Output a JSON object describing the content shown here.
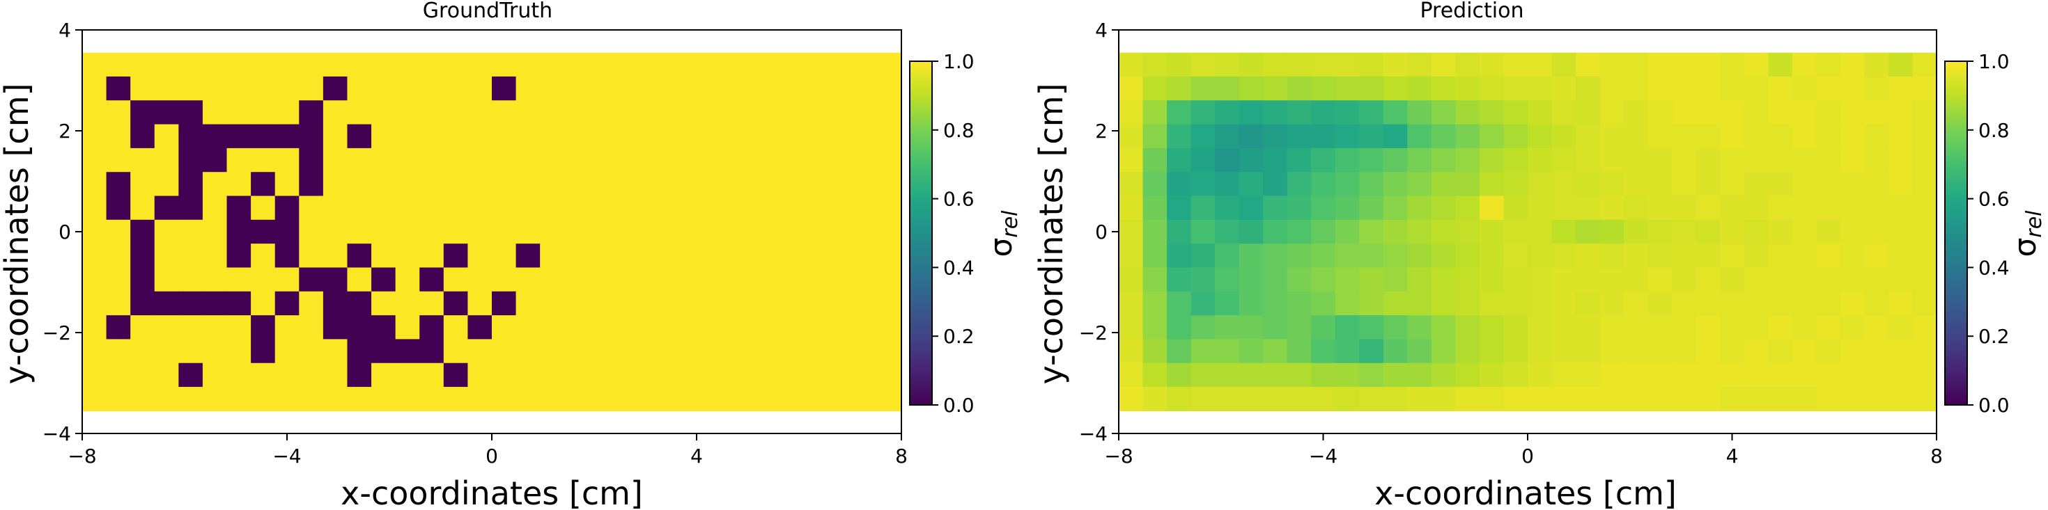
{
  "chart_data": [
    {
      "type": "heatmap",
      "title": "GroundTruth",
      "xlabel": "x-coordinates [cm]",
      "ylabel": "y-coordinates [cm]",
      "xlim": [
        -8,
        8
      ],
      "ylim": [
        -4,
        4
      ],
      "extent": [
        -8,
        8,
        -3.55,
        3.55
      ],
      "xticks": [
        "−8",
        "−4",
        "0",
        "4",
        "8"
      ],
      "yticks": [
        "−4",
        "−2",
        "0",
        "2",
        "4"
      ],
      "grid": false,
      "colormap": "viridis",
      "colorbar": {
        "label": "σrel",
        "ticks": [
          "0.0",
          "0.2",
          "0.4",
          "0.6",
          "0.8",
          "1.0"
        ],
        "range": [
          0,
          1
        ]
      },
      "grid_size": [
        15,
        34
      ],
      "matrix": [
        "1111111111111111111111111111111111",
        "1011111111011111101111111111111111",
        "1100011110111111111111111111111111",
        "1101000000101111111111111111111111",
        "1111001110111111111111111111111111",
        "1011011010111111111111111111111111",
        "1010010101111111111111111111111111",
        "1101110001111111111111111111111111",
        "1101110101101110110111111111111111",
        "1101111110010101111111111111111111",
        "1100000101001110101111111111111111",
        "1011111011000101011111111111111111",
        "1111111011100001111111111111111111",
        "1111011111101110111111111111111111",
        "1111111111111111111111111111111111"
      ]
    },
    {
      "type": "heatmap",
      "title": "Prediction",
      "xlabel": "x-coordinates [cm]",
      "ylabel": "y-coordinates [cm]",
      "xlim": [
        -8,
        8
      ],
      "ylim": [
        -4,
        4
      ],
      "extent": [
        -8,
        8,
        -3.55,
        3.55
      ],
      "xticks": [
        "−8",
        "−4",
        "0",
        "4",
        "8"
      ],
      "yticks": [
        "−4",
        "−2",
        "0",
        "2",
        "4"
      ],
      "grid": false,
      "colormap": "viridis",
      "colorbar": {
        "label": "σrel",
        "ticks": [
          "0.0",
          "0.2",
          "0.4",
          "0.6",
          "0.8",
          "1.0"
        ],
        "range": [
          0,
          1
        ]
      },
      "grid_size": [
        15,
        34
      ],
      "values": [
        [
          0.95,
          0.93,
          0.92,
          0.94,
          0.93,
          0.92,
          0.93,
          0.93,
          0.94,
          0.94,
          0.93,
          0.95,
          0.94,
          0.96,
          0.94,
          0.95,
          0.96,
          0.96,
          0.93,
          0.97,
          0.96,
          0.96,
          0.97,
          0.97,
          0.97,
          0.96,
          0.97,
          0.92,
          0.97,
          0.96,
          0.97,
          0.95,
          0.92,
          0.96
        ],
        [
          0.97,
          0.9,
          0.88,
          0.85,
          0.85,
          0.87,
          0.88,
          0.86,
          0.87,
          0.88,
          0.88,
          0.9,
          0.89,
          0.91,
          0.92,
          0.93,
          0.94,
          0.94,
          0.95,
          0.93,
          0.96,
          0.96,
          0.97,
          0.97,
          0.97,
          0.96,
          0.96,
          0.97,
          0.96,
          0.97,
          0.97,
          0.96,
          0.97,
          0.97
        ],
        [
          0.96,
          0.85,
          0.7,
          0.65,
          0.62,
          0.6,
          0.62,
          0.64,
          0.62,
          0.63,
          0.66,
          0.72,
          0.78,
          0.82,
          0.86,
          0.88,
          0.9,
          0.92,
          0.94,
          0.93,
          0.96,
          0.95,
          0.96,
          0.97,
          0.97,
          0.97,
          0.96,
          0.97,
          0.97,
          0.96,
          0.97,
          0.97,
          0.97,
          0.96
        ],
        [
          0.95,
          0.82,
          0.65,
          0.6,
          0.55,
          0.52,
          0.55,
          0.58,
          0.58,
          0.6,
          0.62,
          0.6,
          0.72,
          0.76,
          0.8,
          0.84,
          0.87,
          0.9,
          0.92,
          0.94,
          0.95,
          0.95,
          0.96,
          0.96,
          0.96,
          0.97,
          0.96,
          0.96,
          0.97,
          0.96,
          0.97,
          0.96,
          0.97,
          0.96
        ],
        [
          0.96,
          0.78,
          0.62,
          0.58,
          0.52,
          0.55,
          0.58,
          0.62,
          0.66,
          0.7,
          0.72,
          0.75,
          0.79,
          0.82,
          0.84,
          0.88,
          0.9,
          0.92,
          0.93,
          0.94,
          0.95,
          0.95,
          0.95,
          0.96,
          0.95,
          0.96,
          0.96,
          0.96,
          0.96,
          0.96,
          0.97,
          0.96,
          0.97,
          0.96
        ],
        [
          0.94,
          0.76,
          0.58,
          0.6,
          0.58,
          0.62,
          0.58,
          0.66,
          0.7,
          0.72,
          0.76,
          0.8,
          0.82,
          0.86,
          0.86,
          0.9,
          0.91,
          0.93,
          0.94,
          0.93,
          0.94,
          0.95,
          0.95,
          0.96,
          0.95,
          0.96,
          0.95,
          0.95,
          0.96,
          0.96,
          0.96,
          0.96,
          0.97,
          0.96
        ],
        [
          0.95,
          0.78,
          0.6,
          0.66,
          0.62,
          0.6,
          0.66,
          0.68,
          0.72,
          0.74,
          0.78,
          0.82,
          0.86,
          0.88,
          0.9,
          0.98,
          0.92,
          0.93,
          0.94,
          0.94,
          0.95,
          0.94,
          0.95,
          0.95,
          0.96,
          0.95,
          0.95,
          0.96,
          0.96,
          0.96,
          0.96,
          0.96,
          0.96,
          0.96
        ],
        [
          0.94,
          0.8,
          0.64,
          0.7,
          0.66,
          0.64,
          0.7,
          0.72,
          0.76,
          0.8,
          0.84,
          0.86,
          0.88,
          0.9,
          0.91,
          0.92,
          0.93,
          0.93,
          0.9,
          0.88,
          0.89,
          0.92,
          0.93,
          0.94,
          0.93,
          0.95,
          0.94,
          0.95,
          0.96,
          0.95,
          0.96,
          0.96,
          0.96,
          0.96
        ],
        [
          0.94,
          0.8,
          0.62,
          0.64,
          0.7,
          0.74,
          0.76,
          0.78,
          0.8,
          0.82,
          0.82,
          0.84,
          0.86,
          0.88,
          0.9,
          0.92,
          0.94,
          0.93,
          0.94,
          0.95,
          0.94,
          0.95,
          0.94,
          0.95,
          0.95,
          0.96,
          0.95,
          0.96,
          0.96,
          0.97,
          0.96,
          0.97,
          0.96,
          0.96
        ],
        [
          0.93,
          0.82,
          0.66,
          0.68,
          0.72,
          0.74,
          0.76,
          0.8,
          0.82,
          0.84,
          0.86,
          0.85,
          0.88,
          0.9,
          0.91,
          0.92,
          0.93,
          0.94,
          0.95,
          0.95,
          0.95,
          0.95,
          0.96,
          0.95,
          0.96,
          0.95,
          0.96,
          0.96,
          0.96,
          0.96,
          0.96,
          0.96,
          0.96,
          0.96
        ],
        [
          0.94,
          0.84,
          0.72,
          0.66,
          0.7,
          0.74,
          0.76,
          0.78,
          0.8,
          0.84,
          0.86,
          0.88,
          0.88,
          0.9,
          0.91,
          0.93,
          0.93,
          0.94,
          0.95,
          0.94,
          0.95,
          0.96,
          0.95,
          0.96,
          0.96,
          0.96,
          0.96,
          0.96,
          0.96,
          0.96,
          0.97,
          0.96,
          0.97,
          0.96
        ],
        [
          0.94,
          0.84,
          0.72,
          0.76,
          0.78,
          0.78,
          0.76,
          0.78,
          0.74,
          0.7,
          0.72,
          0.76,
          0.8,
          0.84,
          0.88,
          0.9,
          0.92,
          0.94,
          0.95,
          0.95,
          0.96,
          0.96,
          0.96,
          0.96,
          0.97,
          0.96,
          0.96,
          0.97,
          0.96,
          0.97,
          0.96,
          0.97,
          0.96,
          0.97
        ],
        [
          0.95,
          0.86,
          0.76,
          0.82,
          0.82,
          0.8,
          0.82,
          0.78,
          0.72,
          0.7,
          0.66,
          0.74,
          0.78,
          0.84,
          0.88,
          0.9,
          0.92,
          0.94,
          0.95,
          0.95,
          0.96,
          0.96,
          0.96,
          0.96,
          0.97,
          0.96,
          0.97,
          0.96,
          0.97,
          0.96,
          0.97,
          0.97,
          0.97,
          0.97
        ],
        [
          0.96,
          0.9,
          0.86,
          0.88,
          0.88,
          0.88,
          0.88,
          0.88,
          0.86,
          0.86,
          0.84,
          0.86,
          0.86,
          0.88,
          0.9,
          0.92,
          0.93,
          0.95,
          0.96,
          0.96,
          0.97,
          0.97,
          0.97,
          0.97,
          0.97,
          0.97,
          0.97,
          0.97,
          0.97,
          0.97,
          0.97,
          0.97,
          0.97,
          0.97
        ],
        [
          0.97,
          0.95,
          0.93,
          0.94,
          0.94,
          0.94,
          0.94,
          0.94,
          0.94,
          0.93,
          0.94,
          0.94,
          0.95,
          0.95,
          0.96,
          0.96,
          0.97,
          0.97,
          0.97,
          0.97,
          0.97,
          0.97,
          0.97,
          0.97,
          0.97,
          0.96,
          0.96,
          0.96,
          0.96,
          0.97,
          0.97,
          0.97,
          0.97,
          0.97
        ]
      ]
    }
  ]
}
